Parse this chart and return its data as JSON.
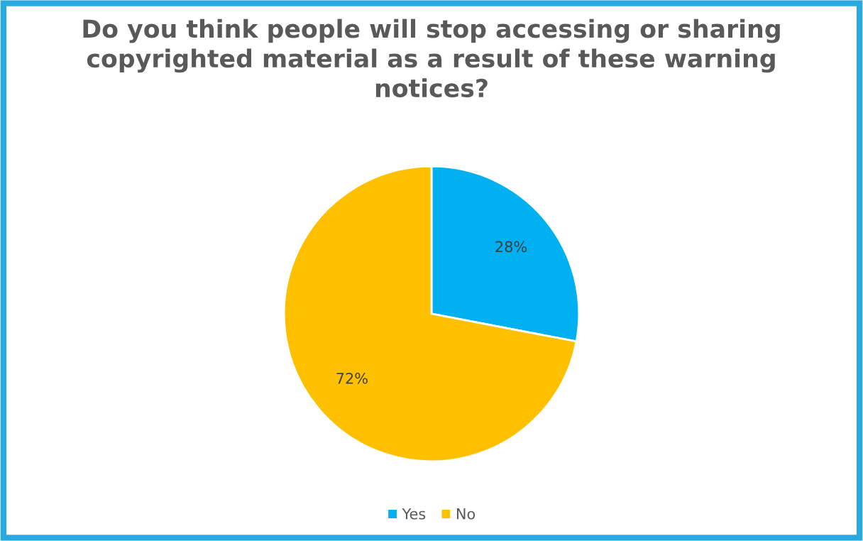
{
  "chart_data": {
    "type": "pie",
    "title": "Do you think people will stop accessing or sharing\ncopyrighted material as a result of these warning\nnotices?",
    "categories": [
      "Yes",
      "No"
    ],
    "values": [
      28,
      72
    ],
    "colors": [
      "#00b0f0",
      "#ffc000"
    ],
    "value_labels": [
      "28%",
      "72%"
    ],
    "legend": "bottom"
  }
}
